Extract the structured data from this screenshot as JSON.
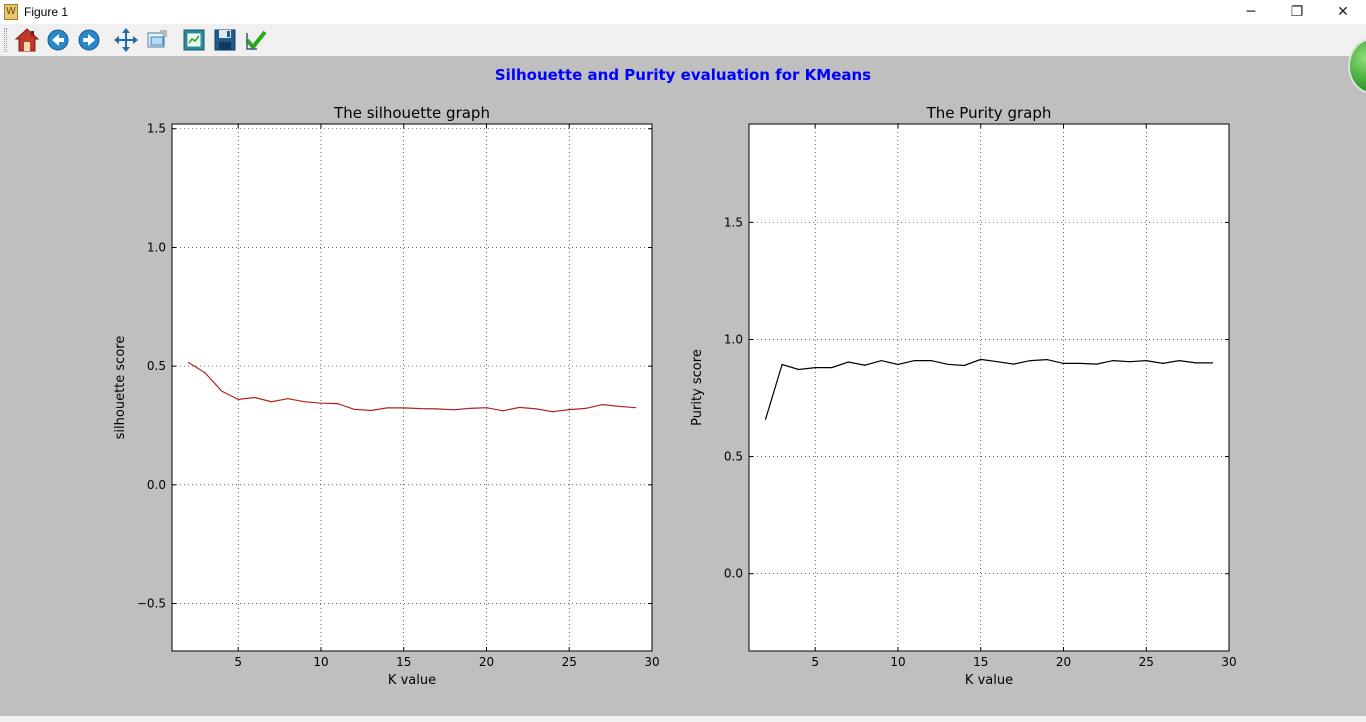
{
  "window": {
    "title": "Figure 1",
    "controls": {
      "minimize": "─",
      "restore": "❐",
      "close": "✕"
    }
  },
  "toolbar": {
    "buttons": [
      {
        "name": "home",
        "icon": "home-icon"
      },
      {
        "name": "back",
        "icon": "back-arrow-icon"
      },
      {
        "name": "forward",
        "icon": "forward-arrow-icon"
      },
      {
        "name": "pan",
        "icon": "pan-move-icon"
      },
      {
        "name": "zoom",
        "icon": "zoom-rect-icon"
      },
      {
        "name": "subplots",
        "icon": "subplots-config-icon"
      },
      {
        "name": "save",
        "icon": "save-floppy-icon"
      },
      {
        "name": "edit",
        "icon": "check-icon"
      }
    ]
  },
  "figure": {
    "suptitle": "Silhouette and Purity evaluation for KMeans",
    "suptitle_color": "#0000ff"
  },
  "chart_data": [
    {
      "type": "line",
      "title": "The silhouette graph",
      "xlabel": "K value",
      "ylabel": "silhouette score",
      "xlim": [
        1,
        30
      ],
      "ylim": [
        -0.7,
        1.52
      ],
      "xticks": [
        5,
        10,
        15,
        20,
        25,
        30
      ],
      "yticks": [
        -0.5,
        0.0,
        0.5,
        1.0,
        1.5
      ],
      "ytick_labels": [
        "−0.5",
        "0.0",
        "0.5",
        "1.0",
        "1.5"
      ],
      "grid": true,
      "series": [
        {
          "color": "#b22222",
          "x": [
            2,
            3,
            4,
            5,
            6,
            7,
            8,
            9,
            10,
            11,
            12,
            13,
            14,
            15,
            16,
            17,
            18,
            19,
            20,
            21,
            22,
            23,
            24,
            25,
            26,
            27,
            28,
            29
          ],
          "y": [
            0.515,
            0.472,
            0.395,
            0.36,
            0.368,
            0.35,
            0.363,
            0.35,
            0.344,
            0.342,
            0.318,
            0.313,
            0.324,
            0.324,
            0.321,
            0.32,
            0.316,
            0.322,
            0.325,
            0.312,
            0.326,
            0.32,
            0.308,
            0.317,
            0.322,
            0.338,
            0.331,
            0.325
          ]
        }
      ]
    },
    {
      "type": "line",
      "title": "The Purity graph",
      "xlabel": "K value",
      "ylabel": "Purity score",
      "xlim": [
        1,
        30
      ],
      "ylim": [
        -0.33,
        1.92
      ],
      "xticks": [
        5,
        10,
        15,
        20,
        25,
        30
      ],
      "yticks": [
        0.0,
        0.5,
        1.0,
        1.5
      ],
      "ytick_labels": [
        "0.0",
        "0.5",
        "1.0",
        "1.5"
      ],
      "grid": true,
      "series": [
        {
          "color": "#000000",
          "x": [
            2,
            3,
            4,
            5,
            6,
            7,
            8,
            9,
            10,
            11,
            12,
            13,
            14,
            15,
            16,
            17,
            18,
            19,
            20,
            21,
            22,
            23,
            24,
            25,
            26,
            27,
            28,
            29
          ],
          "y": [
            0.66,
            0.893,
            0.872,
            0.88,
            0.88,
            0.904,
            0.89,
            0.91,
            0.893,
            0.91,
            0.91,
            0.894,
            0.889,
            0.915,
            0.905,
            0.895,
            0.91,
            0.914,
            0.898,
            0.898,
            0.895,
            0.91,
            0.905,
            0.91,
            0.898,
            0.91,
            0.9,
            0.9
          ]
        }
      ]
    }
  ]
}
